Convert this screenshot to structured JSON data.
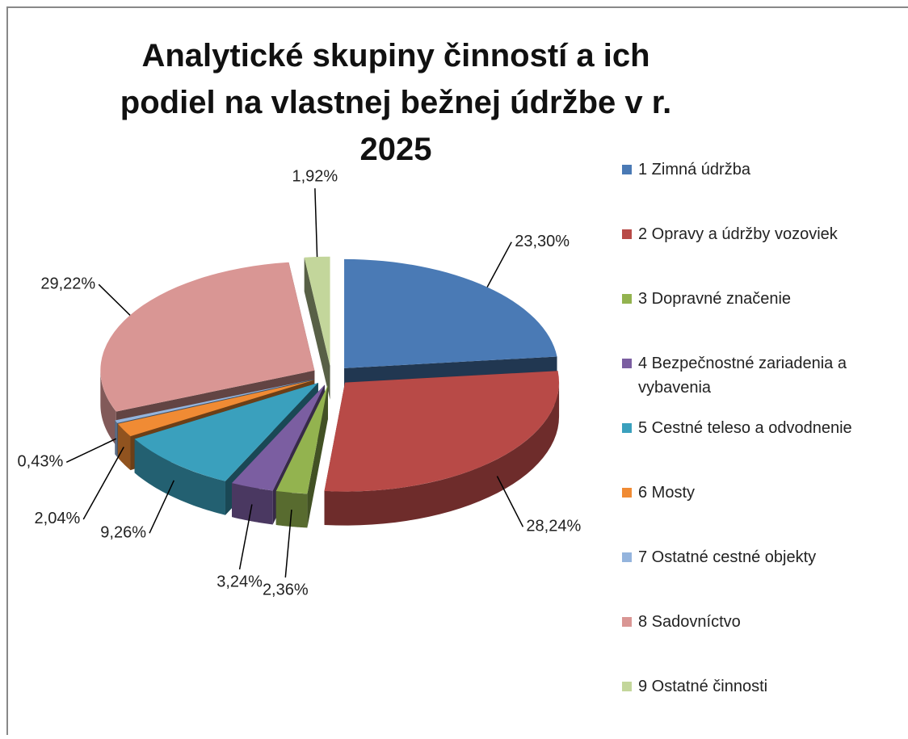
{
  "chart_data": {
    "type": "pie3d",
    "title": "Analytické skupiny činností a ich podiel na vlastnej bežnej údržbe v r. 2025",
    "categories": [
      "1 Zimná údržba",
      "2 Opravy a údržby vozoviek",
      "3 Dopravné značenie",
      "4 Bezpečnostné zariadenia a vybavenia",
      "5 Cestné teleso a odvodnenie",
      "6 Mosty",
      "7 Ostatné cestné objekty",
      "8 Sadovníctvo",
      "9 Ostatné činnosti"
    ],
    "values": [
      23.3,
      28.24,
      2.36,
      3.24,
      9.26,
      2.04,
      0.43,
      29.22,
      1.92
    ],
    "value_labels": [
      "23,30%",
      "28,24%",
      "2,36%",
      "3,24%",
      "9,26%",
      "2,04%",
      "0,43%",
      "29,22%",
      "1,92%"
    ],
    "colors": [
      "#4a7ab5",
      "#b84a47",
      "#93b34f",
      "#7b5ea1",
      "#3aa0bd",
      "#f08b34",
      "#94b4dd",
      "#d99694",
      "#c3d69b"
    ],
    "legend": "right"
  }
}
